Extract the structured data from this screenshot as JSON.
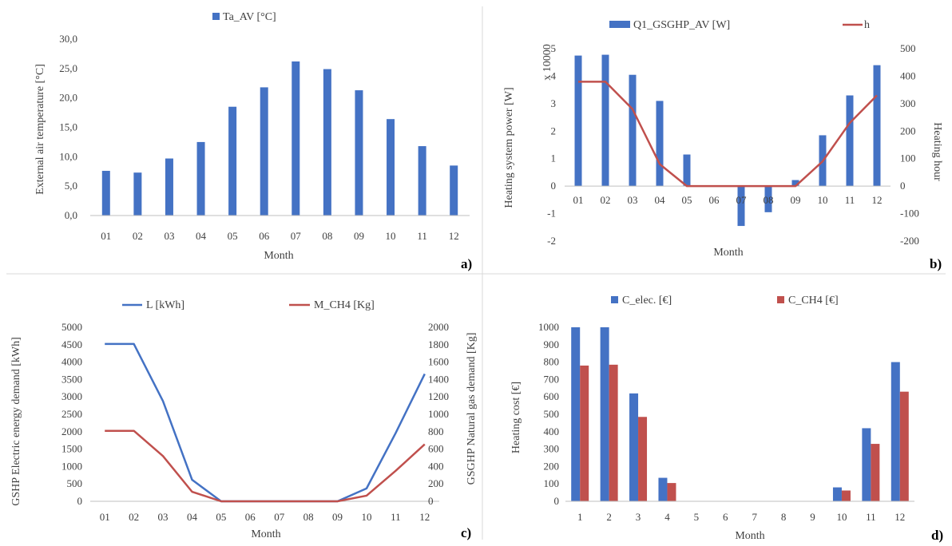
{
  "colors": {
    "blue": "#4472c4",
    "red": "#c0504d",
    "axis": "#bfbfbf",
    "text": "#404040",
    "divider": "#d9d9d9"
  },
  "chart_data": [
    {
      "id": "a",
      "panel_label": "a)",
      "type": "bar",
      "categories": [
        "01",
        "02",
        "03",
        "04",
        "05",
        "06",
        "07",
        "08",
        "09",
        "10",
        "11",
        "12"
      ],
      "series": [
        {
          "name": "Ta_AV [°C]",
          "values": [
            7.6,
            7.3,
            9.7,
            12.5,
            18.5,
            21.8,
            26.2,
            24.9,
            21.3,
            16.4,
            11.8,
            8.5
          ]
        }
      ],
      "xlabel": "Month",
      "ylabel": "External air temperature [°C]",
      "ylim": [
        0,
        30
      ],
      "yticks": [
        "0,0",
        "5,0",
        "10,0",
        "15,0",
        "20,0",
        "25,0",
        "30,0"
      ],
      "grid": false,
      "legend": "top-center"
    },
    {
      "id": "b",
      "panel_label": "b)",
      "type": "bar",
      "categories": [
        "01",
        "02",
        "03",
        "04",
        "05",
        "06",
        "07",
        "08",
        "09",
        "10",
        "11",
        "12"
      ],
      "series": [
        {
          "name": "Q1_GSGHP_AV  [W]",
          "kind": "bar",
          "axis": "left",
          "values": [
            4.75,
            4.78,
            4.05,
            3.1,
            1.15,
            0,
            -1.45,
            -0.95,
            0.22,
            1.85,
            3.3,
            4.4
          ]
        },
        {
          "name": "h",
          "kind": "line",
          "axis": "right",
          "values": [
            380,
            380,
            280,
            80,
            0,
            0,
            0,
            0,
            0,
            90,
            230,
            330
          ]
        }
      ],
      "xlabel": "Month",
      "ylabel": "Heating system power [W]",
      "ylabel_multiplier": "x 10000",
      "ylim": [
        -2,
        5
      ],
      "yticks": [
        "-2",
        "-1",
        "0",
        "1",
        "2",
        "3",
        "4",
        "5"
      ],
      "y2label": "Heating hour",
      "y2lim": [
        -200,
        500
      ],
      "y2ticks": [
        "-200",
        "-100",
        "0",
        "100",
        "200",
        "300",
        "400",
        "500"
      ],
      "grid": false,
      "legend": "top"
    },
    {
      "id": "c",
      "panel_label": "c)",
      "type": "line",
      "categories": [
        "01",
        "02",
        "03",
        "04",
        "05",
        "06",
        "07",
        "08",
        "09",
        "10",
        "11",
        "12"
      ],
      "series": [
        {
          "name": "L  [kWh]",
          "axis": "left",
          "values": [
            4520,
            4520,
            2880,
            620,
            0,
            0,
            0,
            0,
            0,
            370,
            1960,
            3660
          ]
        },
        {
          "name": "M_CH4 [Kg]",
          "axis": "right",
          "values": [
            810,
            810,
            520,
            110,
            0,
            0,
            0,
            0,
            0,
            65,
            350,
            655
          ]
        }
      ],
      "xlabel": "Month",
      "ylabel": "GSHP Electric energy demand [kWh]",
      "ylim": [
        0,
        5000
      ],
      "yticks": [
        "0",
        "500",
        "1000",
        "1500",
        "2000",
        "2500",
        "3000",
        "3500",
        "4000",
        "4500",
        "5000"
      ],
      "y2label": "GSGHP Natural gas demand [Kg]",
      "y2lim": [
        0,
        2000
      ],
      "y2ticks": [
        "0",
        "200",
        "400",
        "600",
        "800",
        "1000",
        "1200",
        "1400",
        "1600",
        "1800",
        "2000"
      ],
      "grid": false,
      "legend": "top"
    },
    {
      "id": "d",
      "panel_label": "d)",
      "type": "bar",
      "categories": [
        "1",
        "2",
        "3",
        "4",
        "5",
        "6",
        "7",
        "8",
        "9",
        "10",
        "11",
        "12"
      ],
      "series": [
        {
          "name": "C_elec. [€]",
          "values": [
            1000,
            1000,
            620,
            135,
            0,
            0,
            0,
            0,
            0,
            80,
            420,
            800
          ]
        },
        {
          "name": "C_CH4 [€]",
          "values": [
            780,
            785,
            485,
            105,
            0,
            0,
            0,
            0,
            0,
            62,
            330,
            630
          ]
        }
      ],
      "xlabel": "Month",
      "ylabel": "Heating cost [€]",
      "ylim": [
        0,
        1000
      ],
      "yticks": [
        "0",
        "100",
        "200",
        "300",
        "400",
        "500",
        "600",
        "700",
        "800",
        "900",
        "1000"
      ],
      "grid": false,
      "legend": "top-center"
    }
  ]
}
